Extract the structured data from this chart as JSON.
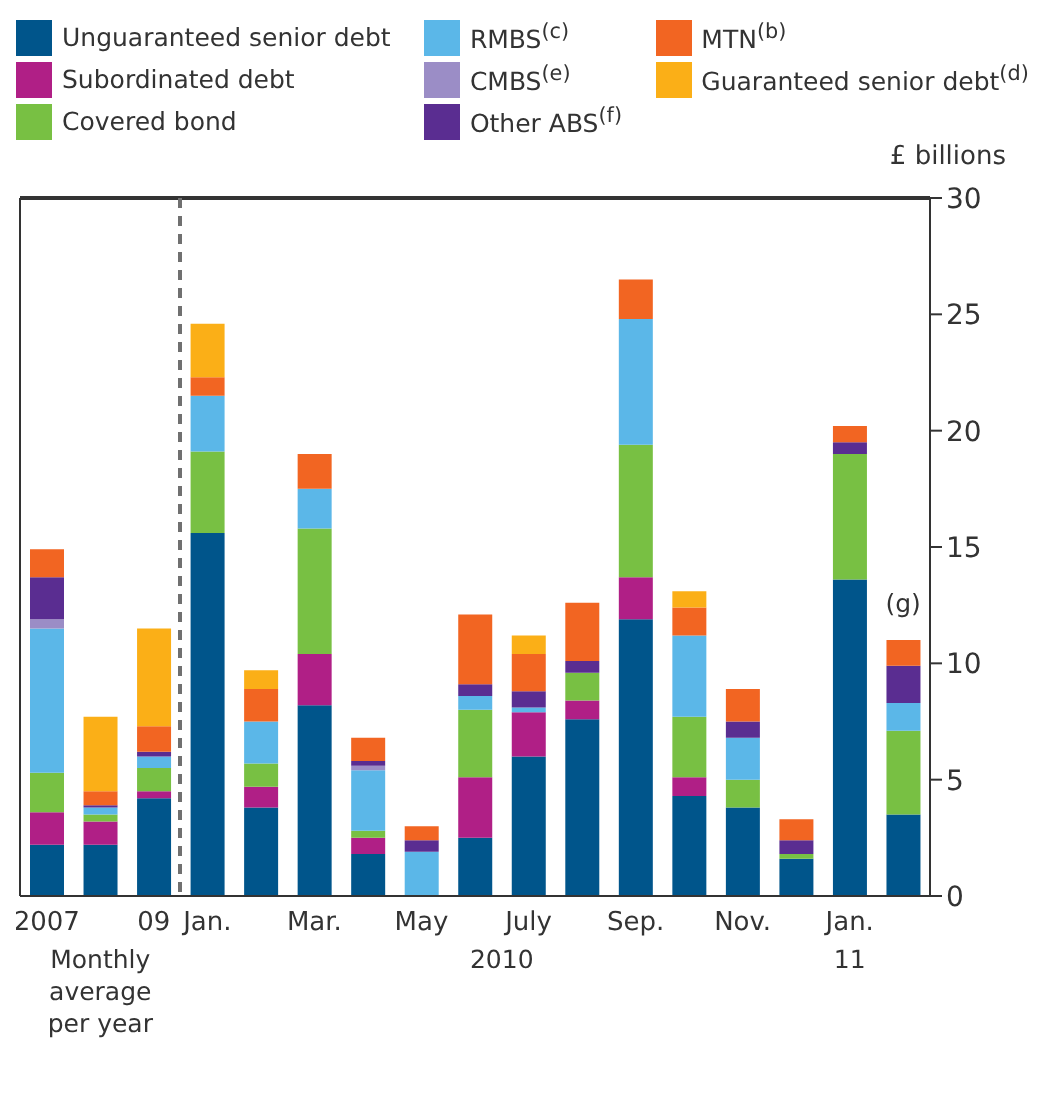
{
  "chart_data": {
    "type": "bar",
    "stacked": true,
    "ylabel": "£ billions",
    "ylim": [
      0,
      30
    ],
    "yticks": [
      0,
      5,
      10,
      15,
      20,
      25,
      30
    ],
    "legend": "top",
    "categories": [
      "2007",
      null,
      "09",
      "Jan.",
      null,
      "Mar.",
      null,
      "May",
      null,
      "July",
      null,
      "Sep.",
      null,
      "Nov.",
      null,
      "Jan.",
      null
    ],
    "series": [
      {
        "name": "Unguaranteed senior debt",
        "color": "#00558b",
        "values": [
          2.2,
          2.2,
          4.2,
          15.6,
          3.8,
          8.2,
          1.8,
          null,
          2.5,
          6.0,
          7.6,
          11.9,
          4.3,
          3.8,
          1.6,
          13.6,
          3.5
        ]
      },
      {
        "name": "Subordinated debt",
        "color": "#b01f86",
        "values": [
          1.4,
          1.0,
          0.3,
          null,
          0.9,
          2.2,
          0.7,
          null,
          2.6,
          1.9,
          0.8,
          1.8,
          0.8,
          null,
          null,
          null,
          null
        ]
      },
      {
        "name": "Covered bond",
        "color": "#78c043",
        "values": [
          1.7,
          0.3,
          1.0,
          3.5,
          1.0,
          5.4,
          0.3,
          null,
          2.9,
          null,
          1.2,
          5.7,
          2.6,
          1.2,
          0.2,
          5.4,
          3.6
        ]
      },
      {
        "name": "RMBS$^{(c)}$",
        "color": "#5bb7e8",
        "values": [
          6.2,
          0.3,
          0.5,
          2.4,
          1.8,
          1.7,
          2.6,
          1.9,
          0.6,
          0.2,
          null,
          5.4,
          3.5,
          1.8,
          null,
          null,
          1.2
        ]
      },
      {
        "name": "CMBS$^{(e)}$",
        "color": "#9b8dc6",
        "values": [
          0.4,
          null,
          null,
          null,
          null,
          null,
          0.2,
          null,
          null,
          null,
          null,
          null,
          null,
          null,
          null,
          null,
          null
        ]
      },
      {
        "name": "Other ABS$^{(f)}$",
        "color": "#5a2d91",
        "values": [
          1.8,
          0.1,
          0.2,
          null,
          null,
          null,
          0.2,
          0.5,
          0.5,
          0.7,
          0.5,
          null,
          null,
          0.7,
          0.6,
          0.5,
          1.6
        ]
      },
      {
        "name": "MTN$^{(b)}$",
        "color": "#f26522",
        "values": [
          1.2,
          0.6,
          1.1,
          0.8,
          1.4,
          1.5,
          1.0,
          0.6,
          3.0,
          1.6,
          2.5,
          1.7,
          1.2,
          1.4,
          0.9,
          0.7,
          1.1
        ]
      },
      {
        "name": "Guaranteed senior debt$^{(d)}$",
        "color": "#fbaf17",
        "values": [
          null,
          3.2,
          4.2,
          2.3,
          0.8,
          null,
          null,
          null,
          null,
          0.8,
          null,
          null,
          0.7,
          null,
          null,
          null,
          null
        ]
      }
    ],
    "annotations": [
      "Monthly average per year",
      "2010",
      "11",
      "(g)"
    ]
  }
}
